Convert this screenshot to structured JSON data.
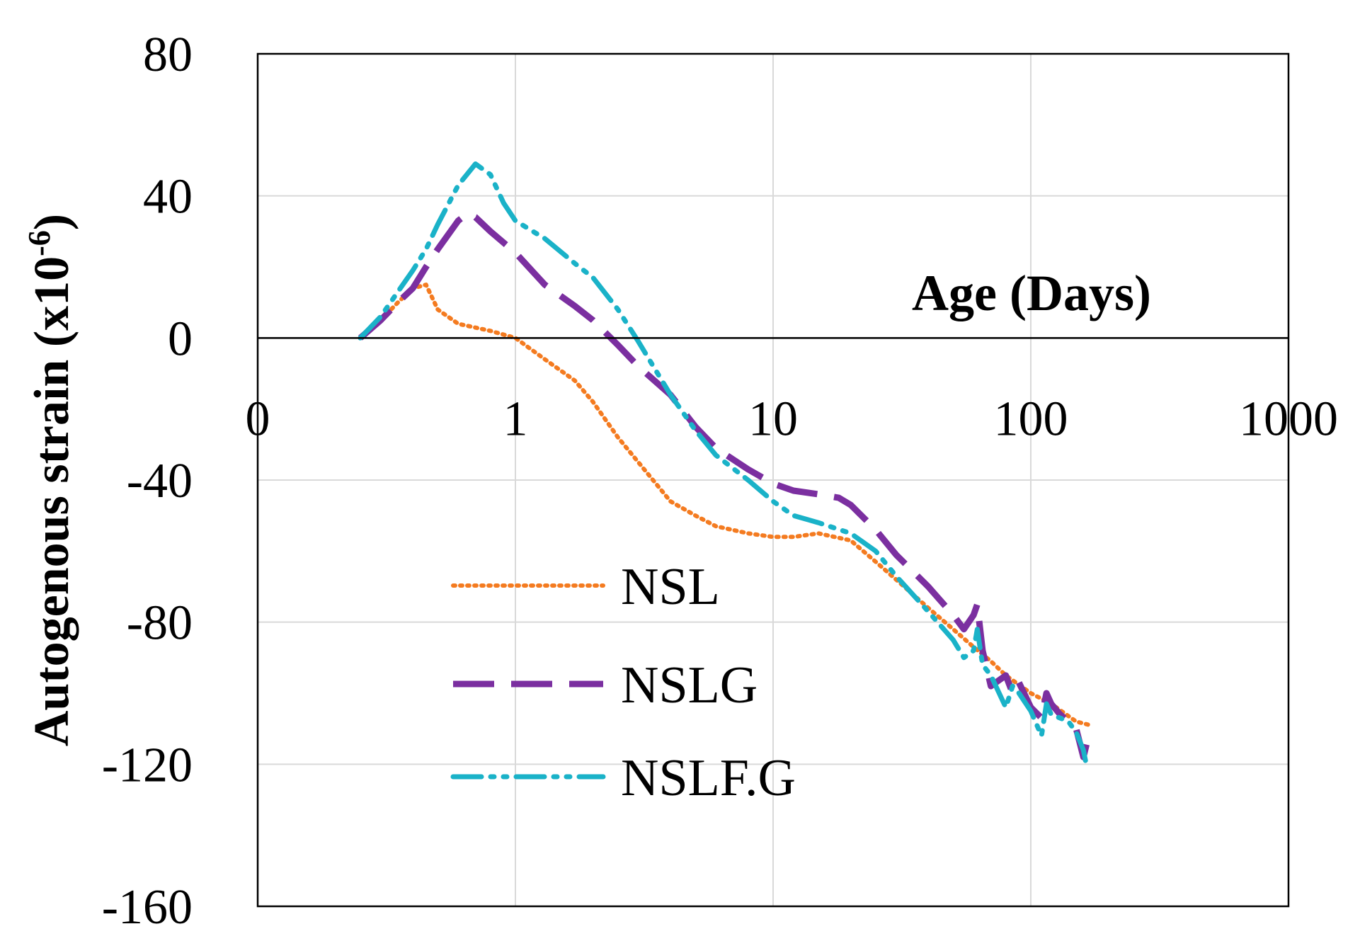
{
  "chart_data": {
    "type": "line",
    "xscale": "log",
    "title": "",
    "xlabel": "Age (Days)",
    "ylabel": "Autogenous strain (x10-6)",
    "ylabel_parts": {
      "main": "Autogenous strain (x10",
      "sup": "-6",
      "close": ")"
    },
    "xlim": [
      0.1,
      1000
    ],
    "ylim": [
      -160,
      80
    ],
    "x_tick_values": [
      0.1,
      1,
      10,
      100,
      1000
    ],
    "x_tick_labels": [
      "0",
      "1",
      "10",
      "100",
      "1000"
    ],
    "y_ticks": [
      80,
      40,
      0,
      -40,
      -80,
      -120,
      -160
    ],
    "grid": true,
    "legend_position": "lower-left",
    "series": [
      {
        "name": "NSL",
        "color": "#f47b20",
        "dash": "dotted",
        "x": [
          0.25,
          0.3,
          0.35,
          0.4,
          0.45,
          0.5,
          0.6,
          0.8,
          1.0,
          1.3,
          1.7,
          2.0,
          2.5,
          3.0,
          4.0,
          5.0,
          6.0,
          8.0,
          10.0,
          12.0,
          15.0,
          20.0,
          25.0,
          30.0,
          40.0,
          50.0,
          60.0,
          70.0,
          80.0,
          100.0,
          120.0,
          150.0,
          170.0
        ],
        "y": [
          0,
          5,
          10,
          14,
          15,
          8,
          4,
          2,
          0,
          -6,
          -12,
          -18,
          -28,
          -35,
          -46,
          -50,
          -53,
          -55,
          -56,
          -56,
          -55,
          -57,
          -63,
          -68,
          -76,
          -82,
          -87,
          -91,
          -95,
          -100,
          -103,
          -108,
          -109
        ]
      },
      {
        "name": "NSLG",
        "color": "#7b2fa0",
        "dash": "dashed",
        "x": [
          0.25,
          0.3,
          0.35,
          0.4,
          0.45,
          0.5,
          0.6,
          0.65,
          0.7,
          0.8,
          1.0,
          1.3,
          1.7,
          2.0,
          2.5,
          3.0,
          4.0,
          5.0,
          6.0,
          8.0,
          10.0,
          12.0,
          15.0,
          18.0,
          20.0,
          25.0,
          30.0,
          40.0,
          50.0,
          55.0,
          60.0,
          62.0,
          65.0,
          70.0,
          80.0,
          85.0,
          90.0,
          100.0,
          110.0,
          115.0,
          120.0,
          130.0,
          140.0,
          150.0,
          160.0,
          165.0
        ],
        "y": [
          0,
          5,
          10,
          14,
          20,
          25,
          33,
          35,
          34,
          30,
          24,
          15,
          9,
          5,
          -2,
          -8,
          -16,
          -25,
          -31,
          -37,
          -41,
          -43,
          -44,
          -45,
          -47,
          -54,
          -61,
          -70,
          -78,
          -82,
          -78,
          -75,
          -88,
          -98,
          -95,
          -100,
          -97,
          -104,
          -107,
          -100,
          -103,
          -106,
          -108,
          -110,
          -118,
          -114
        ]
      },
      {
        "name": "NSLF.G",
        "color": "#1ab2c8",
        "dash": "dashdotdot",
        "x": [
          0.25,
          0.3,
          0.35,
          0.4,
          0.45,
          0.5,
          0.6,
          0.7,
          0.8,
          0.9,
          1.0,
          1.3,
          1.7,
          2.0,
          2.5,
          3.0,
          4.0,
          5.0,
          6.0,
          8.0,
          10.0,
          12.0,
          15.0,
          20.0,
          25.0,
          30.0,
          40.0,
          50.0,
          55.0,
          60.0,
          62.0,
          65.0,
          70.0,
          80.0,
          85.0,
          90.0,
          100.0,
          110.0,
          115.0,
          120.0,
          130.0,
          140.0,
          150.0,
          160.0,
          165.0
        ],
        "y": [
          0,
          6,
          13,
          19,
          25,
          32,
          43,
          49,
          46,
          38,
          33,
          28,
          21,
          17,
          8,
          -1,
          -16,
          -26,
          -33,
          -40,
          -46,
          -50,
          -52,
          -55,
          -60,
          -67,
          -77,
          -85,
          -90,
          -88,
          -82,
          -92,
          -95,
          -104,
          -98,
          -100,
          -105,
          -112,
          -103,
          -106,
          -107,
          -108,
          -111,
          -116,
          -121
        ]
      }
    ]
  }
}
